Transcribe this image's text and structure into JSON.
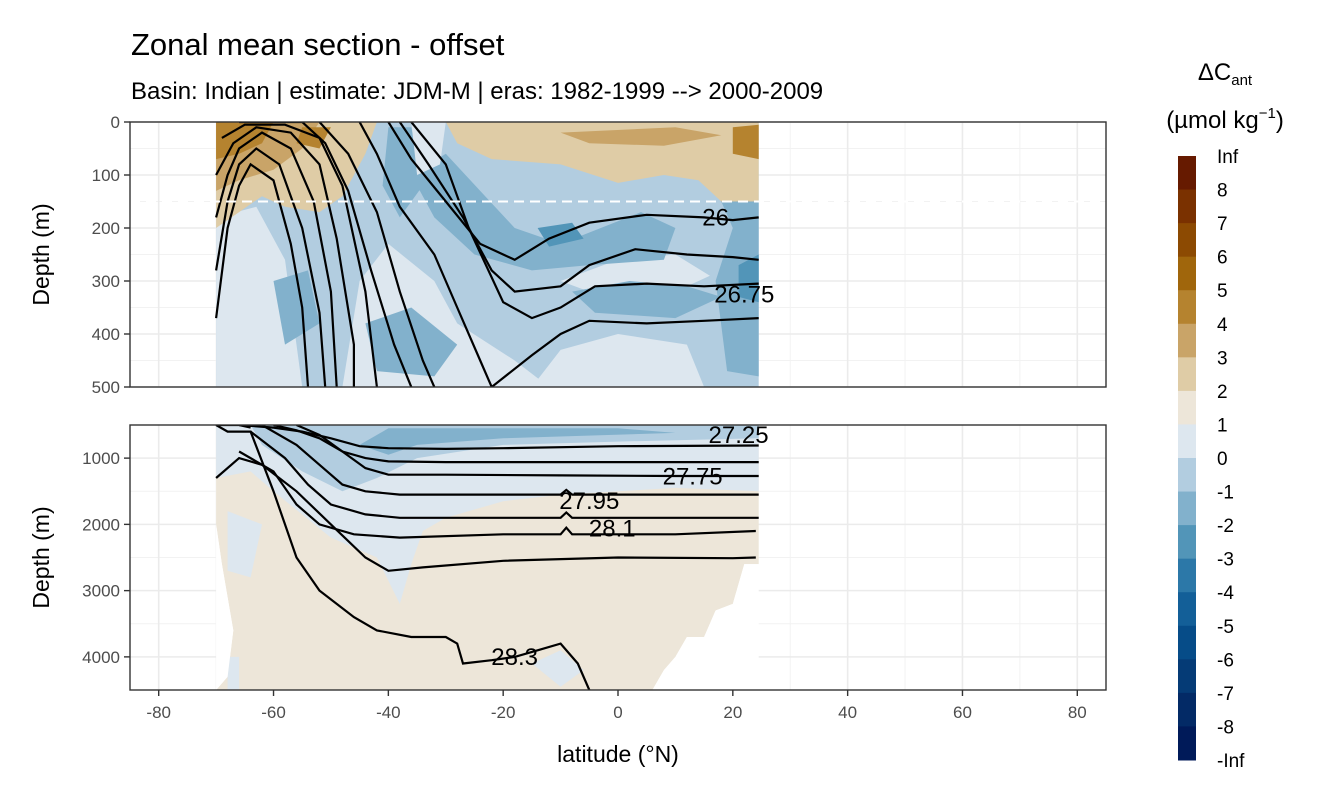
{
  "chart_data": {
    "type": "contour",
    "title": "Zonal mean section - offset",
    "subtitle": "Basin: Indian | estimate: JDM-M | eras: 1982-1999 --> 2000-2009",
    "xlabel": "latitude (°N)",
    "ylabel": "Depth (m)",
    "xlim": [
      -85,
      85
    ],
    "x_ticks": [
      -80,
      -60,
      -40,
      -20,
      0,
      20,
      40,
      60,
      80
    ],
    "x_tick_labels": [
      "-80",
      "-60",
      "-40",
      "-20",
      "0",
      "20",
      "40",
      "60",
      "80"
    ],
    "data_extent_lat": [
      -70,
      24.5
    ],
    "reference_depth_line_m": 150,
    "panels": [
      {
        "name": "upper",
        "ylim": [
          0,
          500
        ],
        "y_ticks": [
          0,
          100,
          200,
          300,
          400,
          500
        ],
        "y_tick_labels": [
          "0",
          "100",
          "200",
          "300",
          "400",
          "500"
        ]
      },
      {
        "name": "lower",
        "ylim": [
          500,
          4500
        ],
        "y_ticks": [
          1000,
          2000,
          3000,
          4000
        ],
        "y_tick_labels": [
          "1000",
          "2000",
          "3000",
          "4000"
        ]
      }
    ],
    "isopycnal_labels": [
      {
        "text": "26",
        "lat": 17,
        "depth": 180
      },
      {
        "text": "26.75",
        "lat": 22,
        "depth": 325
      },
      {
        "text": "27.25",
        "lat": 21,
        "depth": 650
      },
      {
        "text": "27.75",
        "lat": 13,
        "depth": 1280
      },
      {
        "text": "27.95",
        "lat": -5,
        "depth": 1650
      },
      {
        "text": "28.1",
        "lat": -1,
        "depth": 2060
      },
      {
        "text": "28.3",
        "lat": -18,
        "depth": 4000
      }
    ],
    "legend": {
      "title_main": "ΔC",
      "title_sub": "ant",
      "title_units_pre": "(µmol kg",
      "title_units_sup": "−1",
      "title_units_post": ")",
      "boundaries": [
        "Inf",
        "8",
        "7",
        "6",
        "5",
        "4",
        "3",
        "2",
        "1",
        "0",
        "-1",
        "-2",
        "-3",
        "-4",
        "-5",
        "-6",
        "-7",
        "-8",
        "-Inf"
      ],
      "colors": [
        "#661a00",
        "#7a3100",
        "#8c4a02",
        "#a0660c",
        "#b5832f",
        "#c9a468",
        "#dfcca6",
        "#ede6d9",
        "#dde7ef",
        "#b2cde0",
        "#82b1cc",
        "#5295b8",
        "#2c78a8",
        "#135f98",
        "#064c88",
        "#053b76",
        "#032a66",
        "#001a59"
      ]
    }
  }
}
